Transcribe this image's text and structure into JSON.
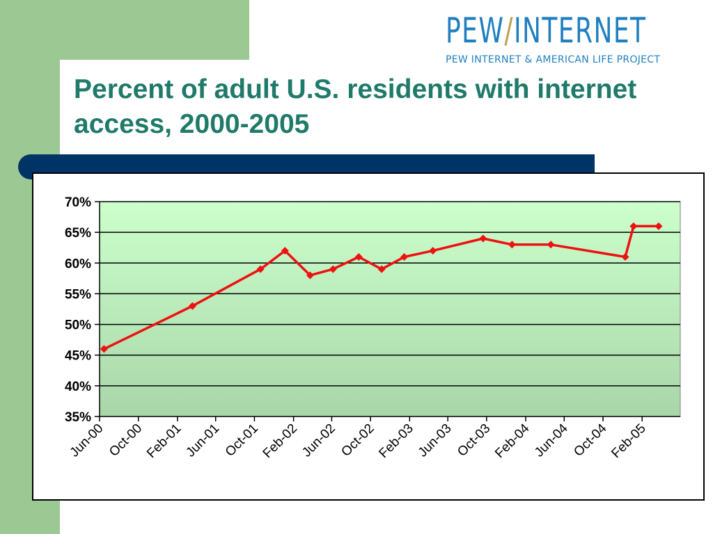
{
  "logo": {
    "main_left": "PEW",
    "main_slash": "/",
    "main_right": "INTERNET",
    "subtitle": "PEW INTERNET & AMERICAN LIFE PROJECT"
  },
  "slide": {
    "title": "Percent of adult U.S. residents with internet access, 2000-2005"
  },
  "colors": {
    "accent_green": "#9cc993",
    "navy": "#003366",
    "title": "#1f7a6a",
    "line": "#ee1111",
    "plot_top": "#ccffcc",
    "plot_bottom": "#a9d6a9"
  },
  "chart_data": {
    "type": "line",
    "title": "",
    "xlabel": "",
    "ylabel": "",
    "ylim": [
      0.35,
      0.7
    ],
    "yticks": [
      "35%",
      "40%",
      "45%",
      "50%",
      "55%",
      "60%",
      "65%",
      "70%"
    ],
    "xticks": [
      "Jun-00",
      "Oct-00",
      "Feb-01",
      "Jun-01",
      "Oct-01",
      "Feb-02",
      "Jun-02",
      "Oct-02",
      "Feb-03",
      "Jun-03",
      "Oct-03",
      "Feb-04",
      "Jun-04",
      "Oct-04",
      "Feb-05"
    ],
    "grid": true,
    "legend": "none",
    "series": [
      {
        "points": [
          {
            "x": "2000-06-15",
            "y": 0.46
          },
          {
            "x": "2001-03-20",
            "y": 0.53
          },
          {
            "x": "2001-10-20",
            "y": 0.59
          },
          {
            "x": "2002-01-05",
            "y": 0.62
          },
          {
            "x": "2002-03-25",
            "y": 0.58
          },
          {
            "x": "2002-06-05",
            "y": 0.59
          },
          {
            "x": "2002-08-25",
            "y": 0.61
          },
          {
            "x": "2002-11-05",
            "y": 0.59
          },
          {
            "x": "2003-01-15",
            "y": 0.61
          },
          {
            "x": "2003-04-15",
            "y": 0.62
          },
          {
            "x": "2003-09-20",
            "y": 0.64
          },
          {
            "x": "2003-12-20",
            "y": 0.63
          },
          {
            "x": "2004-04-20",
            "y": 0.63
          },
          {
            "x": "2004-12-10",
            "y": 0.61
          },
          {
            "x": "2005-01-05",
            "y": 0.66
          },
          {
            "x": "2005-03-25",
            "y": 0.66
          }
        ]
      }
    ]
  }
}
